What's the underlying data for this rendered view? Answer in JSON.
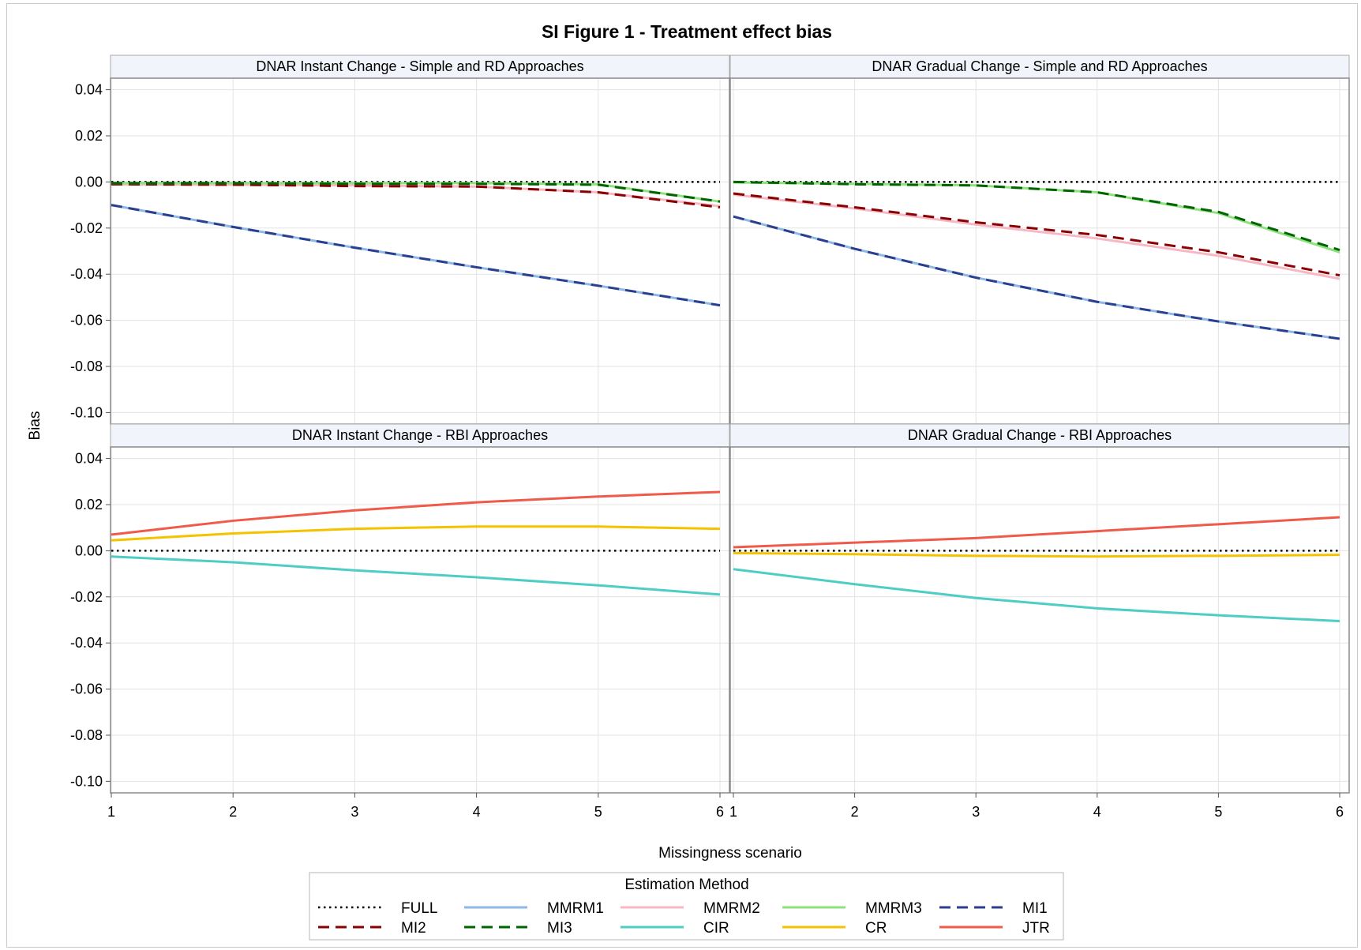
{
  "figure": {
    "title": "SI Figure 1 - Treatment effect bias",
    "xlabel": "Missingness scenario",
    "ylabel": "Bias",
    "legend_title": "Estimation Method"
  },
  "styles": {
    "FULL": {
      "color": "#000000",
      "dash": "dotted"
    },
    "MMRM1": {
      "color": "#8db9e2",
      "dash": "solid"
    },
    "MMRM2": {
      "color": "#f5b8c4",
      "dash": "solid"
    },
    "MMRM3": {
      "color": "#8fe07f",
      "dash": "solid"
    },
    "MI1": {
      "color": "#2a3f8f",
      "dash": "dashed"
    },
    "MI2": {
      "color": "#8b0000",
      "dash": "dashed"
    },
    "MI3": {
      "color": "#006400",
      "dash": "dashed"
    },
    "CIR": {
      "color": "#4ecdc4",
      "dash": "solid"
    },
    "CR": {
      "color": "#f5c200",
      "dash": "solid"
    },
    "JTR": {
      "color": "#f05a4a",
      "dash": "solid"
    }
  },
  "legend": [
    "FULL",
    "MMRM1",
    "MMRM2",
    "MMRM3",
    "MI1",
    "MI2",
    "MI3",
    "CIR",
    "CR",
    "JTR"
  ],
  "chart_data": [
    {
      "type": "line",
      "title": "DNAR Instant Change - Simple and RD Approaches",
      "x": [
        1,
        2,
        3,
        4,
        5,
        6
      ],
      "xlabel": "Missingness scenario",
      "ylabel": "Bias",
      "ylim": [
        -0.105,
        0.045
      ],
      "yticks": [
        0.04,
        0.02,
        0.0,
        -0.02,
        -0.04,
        -0.06,
        -0.08,
        -0.1
      ],
      "grid": true,
      "series": [
        {
          "name": "FULL",
          "values": [
            0.0,
            0.0,
            0.0,
            0.0,
            0.0,
            0.0
          ]
        },
        {
          "name": "MMRM1",
          "values": [
            -0.01,
            -0.0195,
            -0.0285,
            -0.037,
            -0.045,
            -0.0535
          ]
        },
        {
          "name": "MI1",
          "values": [
            -0.01,
            -0.0195,
            -0.0285,
            -0.037,
            -0.045,
            -0.0535
          ]
        },
        {
          "name": "MMRM2",
          "values": [
            -0.001,
            -0.0012,
            -0.0015,
            -0.002,
            -0.0045,
            -0.0105
          ]
        },
        {
          "name": "MI2",
          "values": [
            -0.001,
            -0.0012,
            -0.0018,
            -0.002,
            -0.0045,
            -0.011
          ]
        },
        {
          "name": "MMRM3",
          "values": [
            -0.0005,
            -0.0005,
            -0.0005,
            -0.0005,
            -0.001,
            -0.0085
          ]
        },
        {
          "name": "MI3",
          "values": [
            -0.0005,
            -0.0005,
            -0.0008,
            -0.0008,
            -0.0012,
            -0.0085
          ]
        }
      ]
    },
    {
      "type": "line",
      "title": "DNAR Gradual Change - Simple and RD Approaches",
      "x": [
        1,
        2,
        3,
        4,
        5,
        6
      ],
      "xlabel": "Missingness scenario",
      "ylabel": "Bias",
      "ylim": [
        -0.105,
        0.045
      ],
      "yticks": [
        0.04,
        0.02,
        0.0,
        -0.02,
        -0.04,
        -0.06,
        -0.08,
        -0.1
      ],
      "grid": true,
      "series": [
        {
          "name": "FULL",
          "values": [
            0.0,
            0.0,
            0.0,
            0.0,
            0.0,
            0.0
          ]
        },
        {
          "name": "MMRM1",
          "values": [
            -0.015,
            -0.029,
            -0.0415,
            -0.052,
            -0.0605,
            -0.068
          ]
        },
        {
          "name": "MI1",
          "values": [
            -0.015,
            -0.029,
            -0.0415,
            -0.052,
            -0.0605,
            -0.068
          ]
        },
        {
          "name": "MMRM2",
          "values": [
            -0.0055,
            -0.0115,
            -0.0185,
            -0.0245,
            -0.032,
            -0.042
          ]
        },
        {
          "name": "MI2",
          "values": [
            -0.005,
            -0.011,
            -0.0175,
            -0.023,
            -0.0305,
            -0.0405
          ]
        },
        {
          "name": "MMRM3",
          "values": [
            -0.0002,
            -0.0008,
            -0.0015,
            -0.0045,
            -0.0135,
            -0.0305
          ]
        },
        {
          "name": "MI3",
          "values": [
            0.0,
            -0.001,
            -0.0015,
            -0.0045,
            -0.013,
            -0.0295
          ]
        }
      ]
    },
    {
      "type": "line",
      "title": "DNAR Instant Change - RBI Approaches",
      "x": [
        1,
        2,
        3,
        4,
        5,
        6
      ],
      "xlabel": "Missingness scenario",
      "ylabel": "Bias",
      "ylim": [
        -0.105,
        0.045
      ],
      "yticks": [
        0.04,
        0.02,
        0.0,
        -0.02,
        -0.04,
        -0.06,
        -0.08,
        -0.1
      ],
      "grid": true,
      "series": [
        {
          "name": "FULL",
          "values": [
            0.0,
            0.0,
            0.0,
            0.0,
            0.0,
            0.0
          ]
        },
        {
          "name": "CIR",
          "values": [
            -0.0025,
            -0.005,
            -0.0085,
            -0.0115,
            -0.015,
            -0.019
          ]
        },
        {
          "name": "CR",
          "values": [
            0.0045,
            0.0075,
            0.0095,
            0.0105,
            0.0105,
            0.0095
          ]
        },
        {
          "name": "JTR",
          "values": [
            0.007,
            0.013,
            0.0175,
            0.021,
            0.0235,
            0.0255
          ]
        }
      ]
    },
    {
      "type": "line",
      "title": "DNAR Gradual Change - RBI Approaches",
      "x": [
        1,
        2,
        3,
        4,
        5,
        6
      ],
      "xlabel": "Missingness scenario",
      "ylabel": "Bias",
      "ylim": [
        -0.105,
        0.045
      ],
      "yticks": [
        0.04,
        0.02,
        0.0,
        -0.02,
        -0.04,
        -0.06,
        -0.08,
        -0.1
      ],
      "grid": true,
      "series": [
        {
          "name": "FULL",
          "values": [
            0.0,
            0.0,
            0.0,
            0.0,
            0.0,
            0.0
          ]
        },
        {
          "name": "CIR",
          "values": [
            -0.008,
            -0.0145,
            -0.0205,
            -0.025,
            -0.028,
            -0.0305
          ]
        },
        {
          "name": "CR",
          "values": [
            -0.001,
            -0.0015,
            -0.0022,
            -0.0025,
            -0.0022,
            -0.0018
          ]
        },
        {
          "name": "JTR",
          "values": [
            0.0015,
            0.0035,
            0.0055,
            0.0085,
            0.0115,
            0.0145
          ]
        }
      ]
    }
  ]
}
